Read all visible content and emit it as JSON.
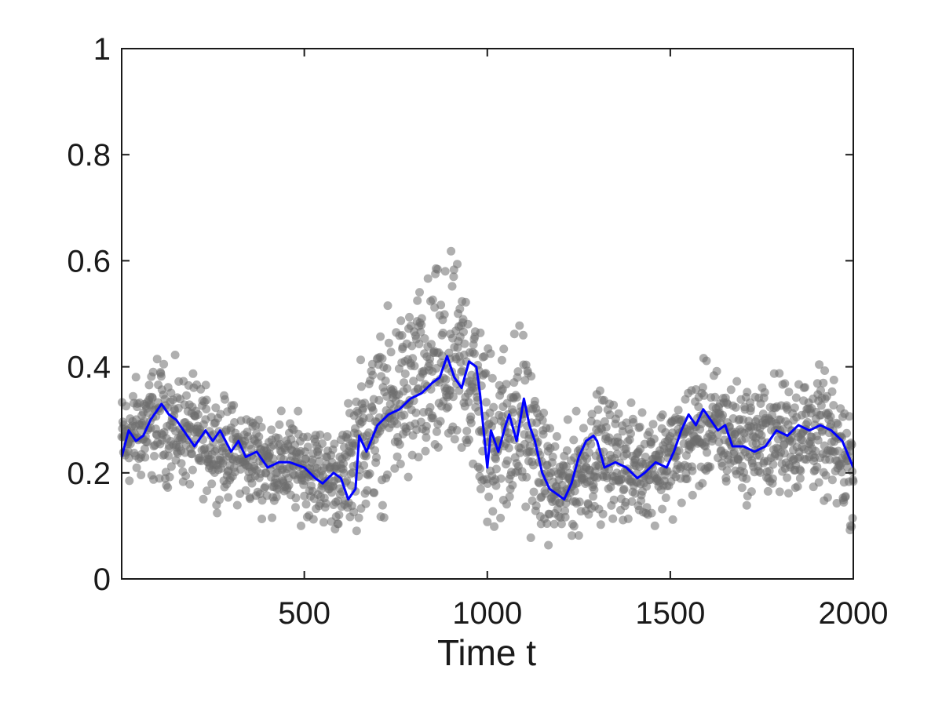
{
  "chart_data": {
    "type": "scatter",
    "title": "",
    "xlabel": "Time t",
    "ylabel": "",
    "xlim": [
      1,
      2000
    ],
    "ylim": [
      0,
      1
    ],
    "x_ticks": [
      500,
      1000,
      1500,
      2000
    ],
    "x_tick_labels": [
      "500",
      "1000",
      "1500",
      "2000"
    ],
    "y_ticks": [
      0,
      0.2,
      0.4,
      0.6,
      0.8,
      1
    ],
    "y_tick_labels": [
      "0",
      "0.2",
      "0.4",
      "0.6",
      "0.8",
      "1"
    ],
    "grid": false,
    "legend": "none",
    "colors": {
      "points": "#6e6e6e",
      "line": "#0000ff",
      "axes": "#1a1a1a"
    },
    "scatter_series": {
      "marker": "filled-circle",
      "approx_count": 2000,
      "envelope": [
        {
          "x": 1,
          "center": 0.26,
          "spread": 0.08
        },
        {
          "x": 100,
          "center": 0.3,
          "spread": 0.1
        },
        {
          "x": 200,
          "center": 0.27,
          "spread": 0.09
        },
        {
          "x": 300,
          "center": 0.24,
          "spread": 0.08
        },
        {
          "x": 400,
          "center": 0.22,
          "spread": 0.08
        },
        {
          "x": 500,
          "center": 0.21,
          "spread": 0.08
        },
        {
          "x": 600,
          "center": 0.18,
          "spread": 0.08
        },
        {
          "x": 650,
          "center": 0.26,
          "spread": 0.13
        },
        {
          "x": 750,
          "center": 0.33,
          "spread": 0.15
        },
        {
          "x": 850,
          "center": 0.38,
          "spread": 0.17
        },
        {
          "x": 950,
          "center": 0.4,
          "spread": 0.17
        },
        {
          "x": 1000,
          "center": 0.26,
          "spread": 0.16
        },
        {
          "x": 1100,
          "center": 0.3,
          "spread": 0.16
        },
        {
          "x": 1150,
          "center": 0.2,
          "spread": 0.1
        },
        {
          "x": 1200,
          "center": 0.16,
          "spread": 0.09
        },
        {
          "x": 1300,
          "center": 0.24,
          "spread": 0.1
        },
        {
          "x": 1400,
          "center": 0.21,
          "spread": 0.09
        },
        {
          "x": 1500,
          "center": 0.23,
          "spread": 0.09
        },
        {
          "x": 1600,
          "center": 0.29,
          "spread": 0.1
        },
        {
          "x": 1700,
          "center": 0.26,
          "spread": 0.09
        },
        {
          "x": 1800,
          "center": 0.27,
          "spread": 0.1
        },
        {
          "x": 1900,
          "center": 0.28,
          "spread": 0.1
        },
        {
          "x": 2000,
          "center": 0.21,
          "spread": 0.1
        }
      ]
    },
    "line_series": {
      "x": [
        1,
        20,
        40,
        60,
        80,
        100,
        110,
        130,
        150,
        180,
        200,
        230,
        250,
        270,
        300,
        320,
        340,
        370,
        400,
        430,
        460,
        500,
        530,
        550,
        580,
        600,
        620,
        640,
        650,
        670,
        700,
        730,
        760,
        790,
        820,
        850,
        870,
        890,
        910,
        930,
        950,
        970,
        980,
        990,
        1000,
        1010,
        1030,
        1050,
        1060,
        1080,
        1100,
        1115,
        1130,
        1150,
        1170,
        1190,
        1210,
        1230,
        1250,
        1270,
        1290,
        1300,
        1320,
        1350,
        1380,
        1410,
        1430,
        1460,
        1490,
        1510,
        1530,
        1550,
        1570,
        1590,
        1610,
        1630,
        1650,
        1670,
        1700,
        1730,
        1760,
        1790,
        1820,
        1850,
        1880,
        1910,
        1940,
        1970,
        2000
      ],
      "y": [
        0.23,
        0.28,
        0.26,
        0.27,
        0.3,
        0.32,
        0.33,
        0.31,
        0.3,
        0.27,
        0.25,
        0.28,
        0.26,
        0.28,
        0.24,
        0.26,
        0.23,
        0.24,
        0.21,
        0.22,
        0.22,
        0.21,
        0.19,
        0.18,
        0.2,
        0.19,
        0.15,
        0.17,
        0.27,
        0.24,
        0.29,
        0.31,
        0.32,
        0.34,
        0.35,
        0.37,
        0.38,
        0.42,
        0.38,
        0.36,
        0.41,
        0.4,
        0.35,
        0.28,
        0.21,
        0.28,
        0.24,
        0.29,
        0.31,
        0.26,
        0.34,
        0.29,
        0.26,
        0.2,
        0.17,
        0.16,
        0.15,
        0.18,
        0.23,
        0.26,
        0.27,
        0.26,
        0.21,
        0.22,
        0.21,
        0.19,
        0.2,
        0.22,
        0.21,
        0.24,
        0.28,
        0.31,
        0.29,
        0.32,
        0.3,
        0.28,
        0.29,
        0.25,
        0.25,
        0.24,
        0.25,
        0.28,
        0.27,
        0.29,
        0.28,
        0.29,
        0.28,
        0.26,
        0.21
      ]
    }
  }
}
